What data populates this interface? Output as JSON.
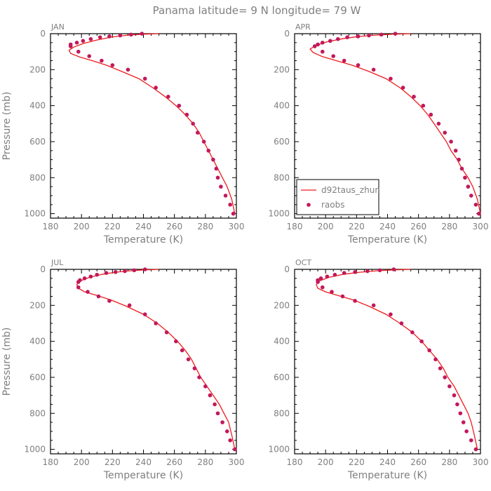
{
  "figure": {
    "title": "Panama  latitude= 9 N longitude= 79 W"
  },
  "colors": {
    "model_line": "#ee1c1c",
    "raobs_marker": "#c2185b",
    "axis_text": "#7f7f7f",
    "frame": "#000000"
  },
  "legend": {
    "line_label": "d92taus_zhun",
    "marker_label": "raobs",
    "panel": "APR",
    "placement": "lower-left"
  },
  "chart_data": [
    {
      "type": "line",
      "month": "JAN",
      "xlabel": "Temperature (K)",
      "ylabel": "Pressure (mb)",
      "xlim": [
        180,
        300
      ],
      "ylim": [
        1025,
        0
      ],
      "xticks": [
        "180",
        "200",
        "220",
        "240",
        "260",
        "280",
        "300"
      ],
      "yticks": [
        "0",
        "200",
        "400",
        "600",
        "800",
        "1000"
      ],
      "line": {
        "name": "d92taus_zhun",
        "x": [
          250,
          239,
          230,
          220,
          210,
          201,
          195,
          192,
          193,
          199,
          207,
          216,
          226,
          237,
          246,
          254,
          261,
          267,
          272,
          276,
          279,
          282,
          285,
          288,
          291,
          294,
          297,
          299
        ],
        "y": [
          0,
          3,
          8,
          18,
          35,
          55,
          75,
          92,
          110,
          130,
          150,
          175,
          210,
          250,
          300,
          350,
          400,
          450,
          500,
          550,
          600,
          650,
          700,
          750,
          800,
          850,
          920,
          1000
        ]
      },
      "scatter": {
        "name": "raobs",
        "x": [
          239,
          232,
          225,
          218,
          212,
          206,
          201,
          197,
          193,
          193,
          198,
          205,
          213,
          220,
          230,
          241,
          248,
          256,
          263,
          268,
          272,
          275,
          279,
          282,
          285,
          287,
          288,
          290,
          293,
          296,
          298
        ],
        "y": [
          0,
          5,
          10,
          15,
          20,
          30,
          40,
          50,
          60,
          70,
          100,
          125,
          150,
          175,
          200,
          250,
          300,
          350,
          400,
          450,
          500,
          550,
          600,
          650,
          700,
          750,
          800,
          850,
          900,
          950,
          1000
        ]
      }
    },
    {
      "type": "line",
      "month": "APR",
      "xlabel": "Temperature (K)",
      "ylabel": "",
      "xlim": [
        180,
        300
      ],
      "ylim": [
        1025,
        0
      ],
      "xticks": [
        "180",
        "200",
        "220",
        "240",
        "260",
        "280",
        "300"
      ],
      "yticks": [
        "0",
        "200",
        "400",
        "600",
        "800",
        "1000"
      ],
      "line": {
        "name": "d92taus_zhun",
        "x": [
          255,
          243,
          232,
          221,
          211,
          201,
          194,
          190,
          192,
          198,
          207,
          217,
          228,
          239,
          248,
          255,
          261,
          266,
          270,
          274,
          278,
          281,
          285,
          288,
          292,
          295,
          298,
          300
        ],
        "y": [
          0,
          3,
          8,
          16,
          28,
          45,
          65,
          85,
          105,
          128,
          150,
          175,
          210,
          250,
          300,
          350,
          400,
          450,
          500,
          550,
          600,
          650,
          700,
          750,
          800,
          850,
          920,
          1000
        ]
      },
      "scatter": {
        "name": "raobs",
        "x": [
          245,
          236,
          228,
          221,
          214,
          208,
          203,
          198,
          195,
          193,
          198,
          205,
          212,
          221,
          231,
          242,
          250,
          257,
          263,
          268,
          273,
          277,
          281,
          284,
          286,
          288,
          290,
          292,
          294,
          297,
          299
        ],
        "y": [
          0,
          5,
          10,
          15,
          20,
          30,
          40,
          50,
          60,
          70,
          100,
          125,
          150,
          175,
          200,
          250,
          300,
          350,
          400,
          450,
          500,
          550,
          600,
          650,
          700,
          750,
          800,
          850,
          900,
          950,
          1000
        ]
      }
    },
    {
      "type": "line",
      "month": "JUL",
      "xlabel": "Temperature (K)",
      "ylabel": "Pressure (mb)",
      "xlim": [
        180,
        300
      ],
      "ylim": [
        1025,
        0
      ],
      "xticks": [
        "180",
        "200",
        "220",
        "240",
        "260",
        "280",
        "300"
      ],
      "yticks": [
        "0",
        "200",
        "400",
        "600",
        "800",
        "1000"
      ],
      "line": {
        "name": "d92taus_zhun",
        "x": [
          250,
          240,
          231,
          222,
          213,
          205,
          199,
          197,
          198,
          202,
          210,
          219,
          229,
          240,
          249,
          256,
          262,
          267,
          271,
          274,
          277,
          281,
          285,
          289,
          292,
          295,
          297,
          299
        ],
        "y": [
          0,
          3,
          8,
          16,
          28,
          45,
          65,
          85,
          105,
          125,
          145,
          170,
          205,
          250,
          300,
          350,
          400,
          450,
          500,
          550,
          600,
          650,
          700,
          750,
          800,
          850,
          920,
          1000
        ]
      },
      "scatter": {
        "name": "raobs",
        "x": [
          241,
          234,
          228,
          222,
          216,
          210,
          206,
          202,
          199,
          198,
          198,
          204,
          211,
          218,
          231,
          241,
          248,
          255,
          261,
          265,
          269,
          273,
          276,
          280,
          283,
          286,
          288,
          291,
          294,
          296,
          299
        ],
        "y": [
          0,
          5,
          10,
          15,
          20,
          30,
          40,
          50,
          60,
          70,
          100,
          125,
          150,
          175,
          200,
          250,
          300,
          350,
          400,
          450,
          500,
          550,
          600,
          650,
          700,
          750,
          800,
          850,
          900,
          950,
          1000
        ]
      }
    },
    {
      "type": "line",
      "month": "OCT",
      "xlabel": "Temperature (K)",
      "ylabel": "",
      "xlim": [
        180,
        300
      ],
      "ylim": [
        1025,
        0
      ],
      "xticks": [
        "180",
        "200",
        "220",
        "240",
        "260",
        "280",
        "300"
      ],
      "yticks": [
        "0",
        "200",
        "400",
        "600",
        "800",
        "1000"
      ],
      "line": {
        "name": "d92taus_zhun",
        "x": [
          255,
          244,
          233,
          222,
          211,
          202,
          196,
          194,
          195,
          200,
          208,
          218,
          228,
          239,
          248,
          256,
          262,
          267,
          272,
          276,
          279,
          283,
          286,
          289,
          292,
          294,
          296,
          298
        ],
        "y": [
          0,
          3,
          8,
          16,
          28,
          45,
          65,
          85,
          105,
          125,
          145,
          170,
          205,
          250,
          300,
          350,
          400,
          450,
          500,
          550,
          600,
          650,
          700,
          750,
          800,
          850,
          920,
          1000
        ]
      },
      "scatter": {
        "name": "raobs",
        "x": [
          244,
          235,
          227,
          219,
          212,
          206,
          201,
          197,
          195,
          195,
          198,
          204,
          211,
          219,
          231,
          242,
          249,
          256,
          262,
          267,
          271,
          274,
          277,
          280,
          283,
          285,
          287,
          289,
          291,
          294,
          297
        ],
        "y": [
          0,
          5,
          10,
          15,
          20,
          30,
          40,
          50,
          60,
          70,
          100,
          125,
          150,
          175,
          200,
          250,
          300,
          350,
          400,
          450,
          500,
          550,
          600,
          650,
          700,
          750,
          800,
          850,
          900,
          950,
          1000
        ]
      }
    }
  ]
}
